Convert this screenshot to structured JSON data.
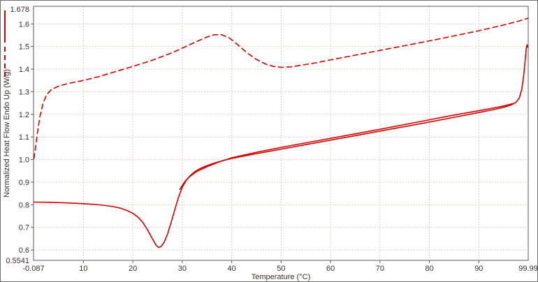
{
  "chart_data": {
    "type": "line",
    "title": "",
    "xlabel": "Temperature (°C)",
    "ylabel": "Normalized Heat Flow Endo Up (W/g)",
    "xlim": [
      -0.087,
      99.99
    ],
    "ylim": [
      0.5541,
      1.678
    ],
    "x_min_label": "-0.087",
    "x_max_label": "99.99",
    "y_min_label": "0.5541",
    "y_max_label": "1.678",
    "x_ticks": [
      10,
      20,
      30,
      40,
      50,
      60,
      70,
      80,
      90
    ],
    "x_tick_labels": [
      "10",
      "20",
      "30",
      "40",
      "50",
      "60",
      "70",
      "80",
      "90"
    ],
    "y_ticks": [
      0.6,
      0.7,
      0.8,
      0.9,
      1.0,
      1.1,
      1.2,
      1.3,
      1.4,
      1.5,
      1.6
    ],
    "y_tick_labels": [
      "0.6",
      "0.7",
      "0.8",
      "0.9",
      "1.0",
      "1.1",
      "1.2",
      "1.3",
      "1.4",
      "1.5",
      "1.6"
    ],
    "grid": true,
    "legend_position": "left-margin",
    "legend_marks": [
      {
        "name": "solid-curve-pen-sample",
        "line_style": "solid"
      },
      {
        "name": "dashed-curve-pen-sample",
        "line_style": "dashed"
      }
    ],
    "colors": {
      "curve": "#d40000",
      "grid": "#ccc3b8",
      "axis_text": "#33302d",
      "plot_border": "#5a5a5a"
    },
    "series": [
      {
        "name": "curve-dashed-upper",
        "line_style": "dashed",
        "points": [
          [
            0,
            1.005
          ],
          [
            0.3,
            1.05
          ],
          [
            0.7,
            1.12
          ],
          [
            1.2,
            1.19
          ],
          [
            1.8,
            1.245
          ],
          [
            2.5,
            1.285
          ],
          [
            3.5,
            1.31
          ],
          [
            5,
            1.325
          ],
          [
            7,
            1.337
          ],
          [
            10,
            1.35
          ],
          [
            13,
            1.366
          ],
          [
            16,
            1.386
          ],
          [
            20,
            1.412
          ],
          [
            24,
            1.44
          ],
          [
            28,
            1.473
          ],
          [
            31,
            1.503
          ],
          [
            33,
            1.523
          ],
          [
            35,
            1.542
          ],
          [
            36.5,
            1.552
          ],
          [
            38,
            1.552
          ],
          [
            39.5,
            1.538
          ],
          [
            41,
            1.512
          ],
          [
            43,
            1.474
          ],
          [
            45,
            1.443
          ],
          [
            47,
            1.421
          ],
          [
            48.5,
            1.412
          ],
          [
            50,
            1.408
          ],
          [
            52,
            1.41
          ],
          [
            54,
            1.417
          ],
          [
            57,
            1.428
          ],
          [
            60,
            1.441
          ],
          [
            65,
            1.462
          ],
          [
            70,
            1.483
          ],
          [
            75,
            1.504
          ],
          [
            80,
            1.525
          ],
          [
            85,
            1.547
          ],
          [
            90,
            1.57
          ],
          [
            95,
            1.595
          ],
          [
            98,
            1.612
          ],
          [
            99.9,
            1.625
          ]
        ]
      },
      {
        "name": "curve-solid-melting",
        "line_style": "solid",
        "points": [
          [
            0,
            0.812
          ],
          [
            3,
            0.811
          ],
          [
            6,
            0.809
          ],
          [
            9,
            0.806
          ],
          [
            12,
            0.802
          ],
          [
            14,
            0.798
          ],
          [
            16,
            0.792
          ],
          [
            17.5,
            0.785
          ],
          [
            19,
            0.773
          ],
          [
            20,
            0.762
          ],
          [
            21,
            0.746
          ],
          [
            22,
            0.722
          ],
          [
            23,
            0.688
          ],
          [
            24,
            0.648
          ],
          [
            24.7,
            0.621
          ],
          [
            25.2,
            0.611
          ],
          [
            25.7,
            0.615
          ],
          [
            26.3,
            0.633
          ],
          [
            27,
            0.669
          ],
          [
            27.7,
            0.719
          ],
          [
            28.5,
            0.779
          ],
          [
            29.2,
            0.831
          ],
          [
            30,
            0.878
          ],
          [
            30.8,
            0.908
          ],
          [
            31.6,
            0.929
          ],
          [
            32.5,
            0.946
          ],
          [
            33.5,
            0.959
          ],
          [
            34.5,
            0.969
          ],
          [
            36,
            0.981
          ],
          [
            38,
            0.994
          ],
          [
            40,
            1.005
          ],
          [
            43,
            1.018
          ],
          [
            46,
            1.03
          ],
          [
            50,
            1.046
          ],
          [
            55,
            1.066
          ],
          [
            60,
            1.086
          ],
          [
            65,
            1.106
          ],
          [
            70,
            1.126
          ],
          [
            75,
            1.146
          ],
          [
            80,
            1.166
          ],
          [
            85,
            1.187
          ],
          [
            90,
            1.208
          ],
          [
            93,
            1.221
          ],
          [
            95,
            1.231
          ],
          [
            96.5,
            1.241
          ],
          [
            97.5,
            1.253
          ],
          [
            98.2,
            1.273
          ],
          [
            98.7,
            1.312
          ],
          [
            99.1,
            1.378
          ],
          [
            99.4,
            1.445
          ],
          [
            99.6,
            1.492
          ],
          [
            99.75,
            1.508
          ],
          [
            99.9,
            1.496
          ]
        ]
      },
      {
        "name": "curve-solid-overlay",
        "line_style": "solid",
        "points": [
          [
            29.5,
            0.868
          ],
          [
            30.5,
            0.902
          ],
          [
            31.5,
            0.925
          ],
          [
            33,
            0.948
          ],
          [
            35,
            0.968
          ],
          [
            37,
            0.986
          ],
          [
            40,
            1.008
          ],
          [
            45,
            1.032
          ],
          [
            50,
            1.054
          ],
          [
            55,
            1.074
          ],
          [
            60,
            1.094
          ],
          [
            65,
            1.114
          ],
          [
            70,
            1.134
          ],
          [
            75,
            1.155
          ],
          [
            80,
            1.176
          ],
          [
            85,
            1.197
          ],
          [
            90,
            1.216
          ],
          [
            93,
            1.228
          ],
          [
            95,
            1.237
          ],
          [
            97,
            1.248
          ]
        ]
      }
    ]
  }
}
